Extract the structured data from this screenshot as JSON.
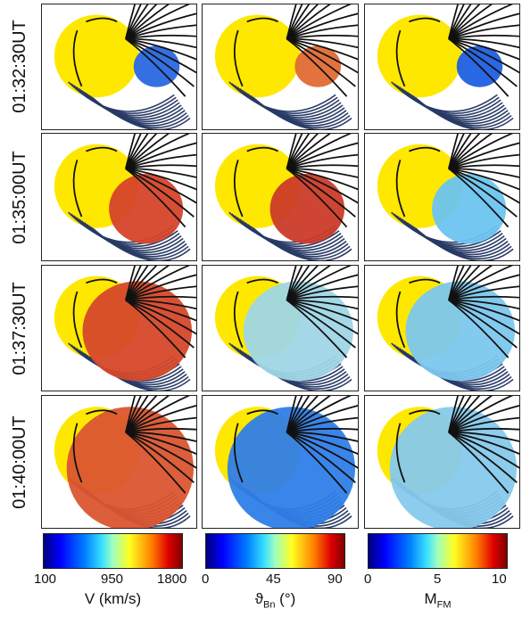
{
  "rows": [
    "01:32:30UT",
    "01:35:00UT",
    "01:37:30UT",
    "01:40:00UT"
  ],
  "columns": [
    {
      "quantity": "V",
      "colorbar": {
        "ticks": [
          "100",
          "950",
          "1800"
        ],
        "label": "V (km/s)",
        "range": [
          100,
          1800
        ]
      },
      "panel_colors": [
        "#2a68e0",
        "#d6452a",
        "#d6482a",
        "#db5530"
      ]
    },
    {
      "quantity": "theta_Bn",
      "colorbar": {
        "ticks": [
          "0",
          "45",
          "90"
        ],
        "label_main": "ϑ",
        "label_sub": "Bn",
        "label_unit": " (°)",
        "range": [
          0,
          90
        ]
      },
      "panel_colors": [
        "#e06a34",
        "#cc3b28",
        "#9fd6e6",
        "#2f7ee8"
      ]
    },
    {
      "quantity": "M_FM",
      "colorbar": {
        "ticks": [
          "0",
          "5",
          "10"
        ],
        "label_main": "M",
        "label_sub": "FM",
        "range": [
          0,
          10
        ]
      },
      "panel_colors": [
        "#1f5fe0",
        "#6cc4ef",
        "#7cc7ee",
        "#86c9ec"
      ]
    }
  ],
  "colors": {
    "sun": "#ffe800",
    "field_lines_open": "#111111",
    "field_lines_closed": "#283a66"
  }
}
